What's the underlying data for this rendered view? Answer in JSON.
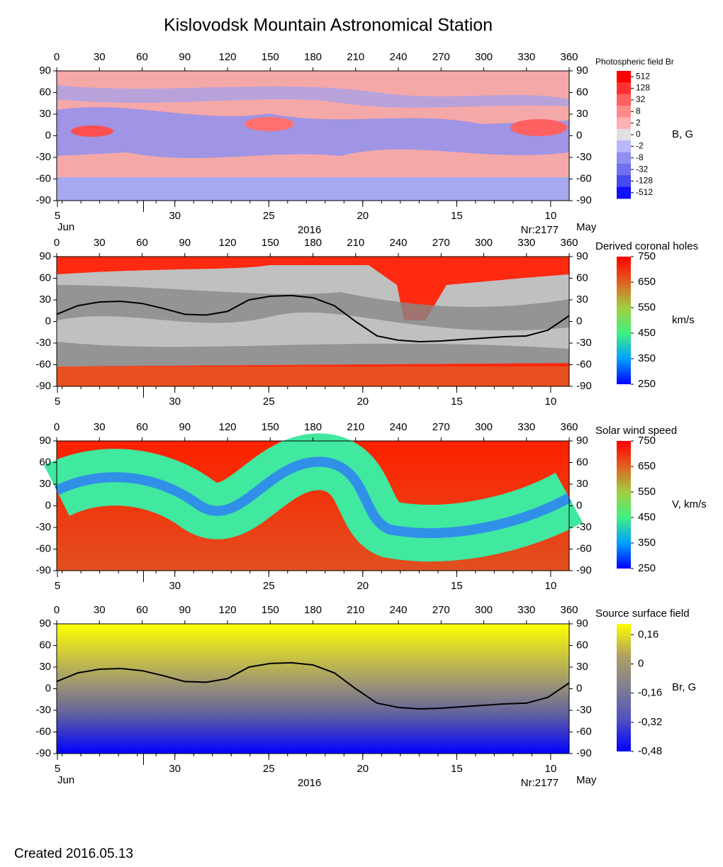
{
  "title": "Kislovodsk Mountain Astronomical Station",
  "created": "Created  2016.05.13",
  "chart_data": [
    {
      "type": "heatmap",
      "title": "Photospheric field Br",
      "colorbar_label": "B, G",
      "xlim": [
        0,
        360
      ],
      "xticks": [
        0,
        30,
        60,
        90,
        120,
        150,
        180,
        210,
        240,
        270,
        300,
        330,
        360
      ],
      "ylim": [
        -90,
        90
      ],
      "yticks": [
        -90,
        -60,
        -30,
        0,
        30,
        60,
        90
      ],
      "date_ticks": [
        {
          "value": 0.5,
          "label": "5"
        },
        {
          "value": 83,
          "label": "30"
        },
        {
          "value": 149,
          "label": "25"
        },
        {
          "value": 215,
          "label": "20"
        },
        {
          "value": 281,
          "label": "15"
        },
        {
          "value": 347,
          "label": "10"
        }
      ],
      "month_ticks": [
        61
      ],
      "month_left": "Jun",
      "month_right": "May",
      "year": "2016",
      "rotation": "Nr:2177",
      "colorbar_scale": "index",
      "cticks": [
        512,
        128,
        32,
        8,
        2,
        0,
        -2,
        -8,
        -32,
        -128,
        -512
      ],
      "colors": [
        "#ff0000",
        "#ff3030",
        "#ff6060",
        "#ff8a8a",
        "#ffb0b0",
        "#e0e0e0",
        "#b8b8ff",
        "#9090f0",
        "#7070f0",
        "#4848f0",
        "#1010ff"
      ]
    },
    {
      "type": "heatmap",
      "title": "Derived coronal holes",
      "colorbar_label": "km/s",
      "xlim": [
        0,
        360
      ],
      "xticks": [
        0,
        30,
        60,
        90,
        120,
        150,
        180,
        210,
        240,
        270,
        300,
        330,
        360
      ],
      "ylim": [
        -90,
        90
      ],
      "yticks": [
        -90,
        -60,
        -30,
        0,
        30,
        60,
        90
      ],
      "date_ticks": [
        {
          "value": 0.5,
          "label": "5"
        },
        {
          "value": 83,
          "label": "30"
        },
        {
          "value": 149,
          "label": "25"
        },
        {
          "value": 215,
          "label": "20"
        },
        {
          "value": 281,
          "label": "15"
        },
        {
          "value": 347,
          "label": "10"
        }
      ],
      "month_ticks": [
        61
      ],
      "colorbar_scale": "linear",
      "clim": [
        250,
        750
      ],
      "cticks": [
        250,
        350,
        450,
        550,
        650,
        750
      ],
      "colors": [
        "#0000ff",
        "#00a0ff",
        "#40f080",
        "#a0d040",
        "#e06020",
        "#ff0000"
      ],
      "series": [
        {
          "name": "Neutral line",
          "color": "#000000",
          "x": [
            0,
            15,
            30,
            45,
            60,
            75,
            90,
            105,
            120,
            135,
            150,
            165,
            180,
            195,
            210,
            225,
            240,
            255,
            270,
            285,
            300,
            315,
            330,
            345,
            360
          ],
          "y": [
            10,
            22,
            27,
            28,
            25,
            18,
            10,
            9,
            14,
            30,
            35,
            36,
            33,
            22,
            0,
            -20,
            -26,
            -28,
            -27,
            -25,
            -23,
            -21,
            -20,
            -12,
            8
          ]
        }
      ]
    },
    {
      "type": "heatmap",
      "title": "Solar wind speed",
      "colorbar_label": "V, km/s",
      "xlim": [
        0,
        360
      ],
      "xticks": [
        0,
        30,
        60,
        90,
        120,
        150,
        180,
        210,
        240,
        270,
        300,
        330,
        360
      ],
      "ylim": [
        -90,
        90
      ],
      "yticks": [
        -90,
        -60,
        -30,
        0,
        30,
        60,
        90
      ],
      "date_ticks": [
        {
          "value": 0.5,
          "label": "5"
        },
        {
          "value": 83,
          "label": "30"
        },
        {
          "value": 149,
          "label": "25"
        },
        {
          "value": 215,
          "label": "20"
        },
        {
          "value": 281,
          "label": "15"
        },
        {
          "value": 347,
          "label": "10"
        }
      ],
      "month_ticks": [
        61
      ],
      "colorbar_scale": "linear",
      "clim": [
        250,
        750
      ],
      "cticks": [
        250,
        350,
        450,
        550,
        650,
        750
      ],
      "colors": [
        "#0000ff",
        "#00a0ff",
        "#40f080",
        "#a0d040",
        "#e06020",
        "#ff0000"
      ]
    },
    {
      "type": "heatmap",
      "title": "Source surface field",
      "colorbar_label": "Br, G",
      "xlim": [
        0,
        360
      ],
      "xticks": [
        0,
        30,
        60,
        90,
        120,
        150,
        180,
        210,
        240,
        270,
        300,
        330,
        360
      ],
      "ylim": [
        -90,
        90
      ],
      "yticks": [
        -90,
        -60,
        -30,
        0,
        30,
        60,
        90
      ],
      "date_ticks": [
        {
          "value": 0.5,
          "label": "5"
        },
        {
          "value": 83,
          "label": "30"
        },
        {
          "value": 149,
          "label": "25"
        },
        {
          "value": 215,
          "label": "20"
        },
        {
          "value": 281,
          "label": "15"
        },
        {
          "value": 347,
          "label": "10"
        }
      ],
      "month_ticks": [
        61
      ],
      "month_left": "Jun",
      "month_right": "May",
      "year": "2016",
      "rotation": "Nr:2177",
      "colorbar_scale": "linear",
      "clim": [
        -0.48,
        0.22
      ],
      "cticks": [
        {
          "value": 0.16,
          "label": "0,16"
        },
        0,
        {
          "value": -0.16,
          "label": "-0,16"
        },
        {
          "value": -0.32,
          "label": "-0,32"
        },
        {
          "value": -0.48,
          "label": "-0,48"
        }
      ],
      "colors": [
        "#0000ff",
        "#5050c0",
        "#808090",
        "#b0a060",
        "#ffff00"
      ],
      "series": [
        {
          "name": "Neutral line",
          "color": "#000000",
          "x": [
            0,
            15,
            30,
            45,
            60,
            75,
            90,
            105,
            120,
            135,
            150,
            165,
            180,
            195,
            210,
            225,
            240,
            255,
            270,
            285,
            300,
            315,
            330,
            345,
            360
          ],
          "y": [
            10,
            22,
            27,
            28,
            25,
            18,
            10,
            9,
            14,
            30,
            35,
            36,
            33,
            22,
            0,
            -20,
            -26,
            -28,
            -27,
            -25,
            -23,
            -21,
            -20,
            -12,
            8
          ]
        }
      ]
    }
  ]
}
